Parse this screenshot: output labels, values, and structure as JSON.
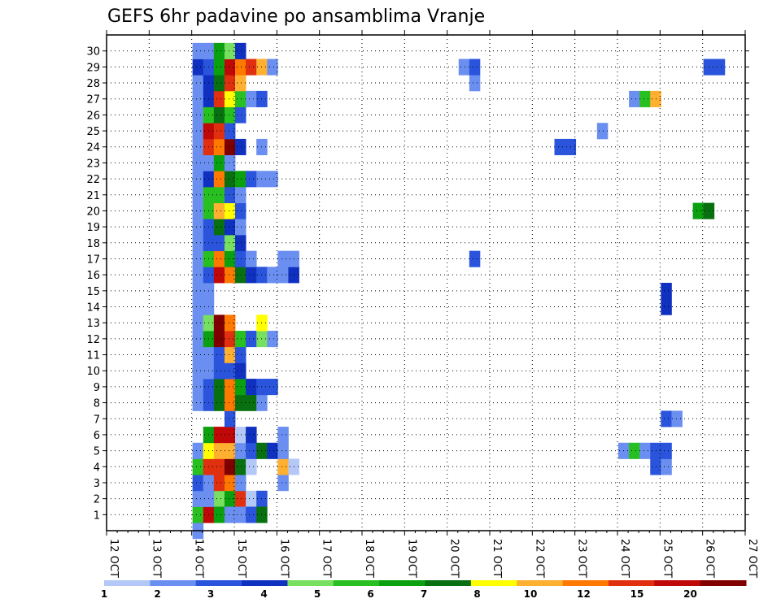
{
  "chart_data": {
    "type": "heatmap",
    "title": "GEFS 6hr padavine po ansamblima Vranje",
    "xlabel": "",
    "ylabel": "",
    "x_ticks": [
      "12 OCT",
      "13 OCT",
      "14 OCT",
      "15 OCT",
      "16 OCT",
      "17 OCT",
      "18 OCT",
      "19 OCT",
      "20 OCT",
      "21 OCT",
      "22 OCT",
      "23 OCT",
      "24 OCT",
      "25 OCT",
      "26 OCT",
      "27 OCT"
    ],
    "xlim": [
      0,
      60
    ],
    "y_ticks": [
      "1",
      "2",
      "3",
      "4",
      "5",
      "6",
      "7",
      "8",
      "9",
      "10",
      "11",
      "12",
      "13",
      "14",
      "15",
      "16",
      "17",
      "18",
      "19",
      "20",
      "21",
      "22",
      "23",
      "24",
      "25",
      "26",
      "27",
      "28",
      "29",
      "30"
    ],
    "ylim": [
      0,
      30
    ],
    "grid": true,
    "colorbar": {
      "levels": [
        "1",
        "2",
        "3",
        "4",
        "5",
        "6",
        "7",
        "8",
        "10",
        "12",
        "15",
        "20"
      ],
      "colors": [
        "#b4c8f8",
        "#6a8ff0",
        "#2a54dc",
        "#1030c0",
        "#78e060",
        "#28c020",
        "#0aa010",
        "#087010",
        "#ffff00",
        "#ffb030",
        "#ff7800",
        "#e03010",
        "#c00808",
        "#800000"
      ]
    },
    "cells": [
      [
        0,
        0,
        1
      ],
      [
        1,
        1,
        1
      ],
      [
        1,
        2,
        7
      ],
      [
        2,
        2,
        4
      ],
      [
        3,
        2,
        6
      ],
      [
        4,
        2,
        11
      ],
      [
        5,
        2,
        0
      ],
      [
        6,
        2,
        2
      ],
      [
        0,
        1,
        5
      ],
      [
        1,
        1,
        12
      ],
      [
        2,
        1,
        6
      ],
      [
        3,
        1,
        1
      ],
      [
        4,
        1,
        1
      ],
      [
        5,
        1,
        2
      ],
      [
        6,
        1,
        7
      ],
      [
        0,
        2,
        1
      ],
      [
        1,
        2,
        1
      ],
      [
        0,
        3,
        2
      ],
      [
        1,
        3,
        1
      ],
      [
        2,
        3,
        11
      ],
      [
        3,
        3,
        10
      ],
      [
        4,
        3,
        1
      ],
      [
        8,
        3,
        1
      ],
      [
        0,
        4,
        5
      ],
      [
        1,
        4,
        11
      ],
      [
        2,
        4,
        11
      ],
      [
        3,
        4,
        13
      ],
      [
        4,
        4,
        7
      ],
      [
        5,
        4,
        0
      ],
      [
        8,
        4,
        9
      ],
      [
        9,
        4,
        0
      ],
      [
        43,
        4,
        2
      ],
      [
        44,
        4,
        1
      ],
      [
        59,
        4,
        9
      ],
      [
        60,
        4,
        6
      ],
      [
        61,
        4,
        1
      ],
      [
        62,
        4,
        1
      ],
      [
        0,
        5,
        1
      ],
      [
        1,
        5,
        8
      ],
      [
        2,
        5,
        9
      ],
      [
        3,
        5,
        9
      ],
      [
        4,
        5,
        1
      ],
      [
        5,
        5,
        2
      ],
      [
        6,
        5,
        7
      ],
      [
        7,
        5,
        3
      ],
      [
        8,
        5,
        1
      ],
      [
        40,
        5,
        1
      ],
      [
        41,
        5,
        5
      ],
      [
        42,
        5,
        1
      ],
      [
        43,
        5,
        2
      ],
      [
        44,
        5,
        2
      ],
      [
        1,
        6,
        6
      ],
      [
        2,
        6,
        12
      ],
      [
        3,
        6,
        12
      ],
      [
        4,
        6,
        0
      ],
      [
        5,
        6,
        3
      ],
      [
        8,
        6,
        1
      ],
      [
        63,
        6,
        3
      ],
      [
        64,
        6,
        12
      ],
      [
        65,
        6,
        13
      ],
      [
        66,
        6,
        0
      ],
      [
        3,
        7,
        2
      ],
      [
        44,
        7,
        2
      ],
      [
        45,
        7,
        1
      ],
      [
        59,
        7,
        2
      ],
      [
        60,
        7,
        2
      ],
      [
        0,
        8,
        1
      ],
      [
        1,
        8,
        2
      ],
      [
        2,
        8,
        7
      ],
      [
        3,
        8,
        10
      ],
      [
        4,
        8,
        7
      ],
      [
        5,
        8,
        7
      ],
      [
        6,
        8,
        1
      ],
      [
        67,
        8,
        2
      ],
      [
        0,
        9,
        1
      ],
      [
        1,
        9,
        2
      ],
      [
        2,
        9,
        7
      ],
      [
        3,
        9,
        10
      ],
      [
        4,
        9,
        6
      ],
      [
        5,
        9,
        3
      ],
      [
        6,
        9,
        2
      ],
      [
        7,
        9,
        2
      ],
      [
        0,
        10,
        1
      ],
      [
        1,
        10,
        1
      ],
      [
        2,
        10,
        2
      ],
      [
        3,
        10,
        2
      ],
      [
        4,
        10,
        3
      ],
      [
        0,
        11,
        1
      ],
      [
        1,
        11,
        1
      ],
      [
        2,
        11,
        2
      ],
      [
        3,
        11,
        9
      ],
      [
        4,
        11,
        2
      ],
      [
        0,
        12,
        1
      ],
      [
        1,
        12,
        6
      ],
      [
        2,
        12,
        13
      ],
      [
        3,
        12,
        11
      ],
      [
        4,
        12,
        5
      ],
      [
        5,
        12,
        2
      ],
      [
        6,
        12,
        4
      ],
      [
        7,
        12,
        1
      ],
      [
        0,
        13,
        1
      ],
      [
        1,
        13,
        4
      ],
      [
        2,
        13,
        13
      ],
      [
        3,
        13,
        10
      ],
      [
        6,
        13,
        8
      ],
      [
        0,
        14,
        1
      ],
      [
        1,
        14,
        1
      ],
      [
        44,
        14,
        3
      ],
      [
        0,
        15,
        1
      ],
      [
        1,
        15,
        1
      ],
      [
        44,
        15,
        3
      ],
      [
        0,
        16,
        1
      ],
      [
        1,
        16,
        2
      ],
      [
        2,
        16,
        12
      ],
      [
        3,
        16,
        10
      ],
      [
        4,
        16,
        7
      ],
      [
        5,
        16,
        3
      ],
      [
        6,
        16,
        2
      ],
      [
        7,
        16,
        1
      ],
      [
        8,
        16,
        1
      ],
      [
        9,
        16,
        3
      ],
      [
        0,
        17,
        1
      ],
      [
        1,
        17,
        5
      ],
      [
        2,
        17,
        10
      ],
      [
        3,
        17,
        6
      ],
      [
        4,
        17,
        2
      ],
      [
        5,
        17,
        1
      ],
      [
        8,
        17,
        1
      ],
      [
        9,
        17,
        1
      ],
      [
        26,
        17,
        2
      ],
      [
        56,
        17,
        10
      ],
      [
        57,
        17,
        1
      ],
      [
        0,
        18,
        1
      ],
      [
        1,
        18,
        2
      ],
      [
        2,
        18,
        2
      ],
      [
        3,
        18,
        4
      ],
      [
        4,
        18,
        3
      ],
      [
        65,
        18,
        9
      ],
      [
        66,
        18,
        5
      ],
      [
        0,
        19,
        1
      ],
      [
        1,
        19,
        2
      ],
      [
        2,
        19,
        7
      ],
      [
        3,
        19,
        3
      ],
      [
        4,
        19,
        1
      ],
      [
        59,
        19,
        9
      ],
      [
        0,
        20,
        1
      ],
      [
        1,
        20,
        5
      ],
      [
        2,
        20,
        9
      ],
      [
        3,
        20,
        8
      ],
      [
        4,
        20,
        2
      ],
      [
        47,
        20,
        6
      ],
      [
        48,
        20,
        7
      ],
      [
        0,
        21,
        1
      ],
      [
        1,
        21,
        5
      ],
      [
        2,
        21,
        5
      ],
      [
        3,
        21,
        2
      ],
      [
        4,
        21,
        1
      ],
      [
        0,
        22,
        1
      ],
      [
        1,
        22,
        3
      ],
      [
        2,
        22,
        10
      ],
      [
        3,
        22,
        7
      ],
      [
        4,
        22,
        6
      ],
      [
        5,
        22,
        2
      ],
      [
        6,
        22,
        1
      ],
      [
        7,
        22,
        1
      ],
      [
        59,
        22,
        3
      ],
      [
        0,
        23,
        1
      ],
      [
        1,
        23,
        1
      ],
      [
        2,
        23,
        6
      ],
      [
        3,
        23,
        1
      ],
      [
        0,
        24,
        1
      ],
      [
        1,
        24,
        11
      ],
      [
        2,
        24,
        10
      ],
      [
        3,
        24,
        13
      ],
      [
        4,
        24,
        3
      ],
      [
        6,
        24,
        1
      ],
      [
        34,
        24,
        2
      ],
      [
        35,
        24,
        2
      ],
      [
        0,
        25,
        1
      ],
      [
        1,
        25,
        12
      ],
      [
        2,
        25,
        11
      ],
      [
        3,
        25,
        2
      ],
      [
        38,
        25,
        1
      ],
      [
        0,
        26,
        1
      ],
      [
        1,
        26,
        5
      ],
      [
        2,
        26,
        7
      ],
      [
        3,
        26,
        5
      ],
      [
        4,
        26,
        2
      ],
      [
        59,
        26,
        1
      ],
      [
        60,
        26,
        1
      ],
      [
        61,
        26,
        2
      ],
      [
        62,
        26,
        5
      ],
      [
        0,
        27,
        1
      ],
      [
        1,
        27,
        3
      ],
      [
        2,
        27,
        11
      ],
      [
        3,
        27,
        8
      ],
      [
        4,
        27,
        5
      ],
      [
        5,
        27,
        1
      ],
      [
        6,
        27,
        2
      ],
      [
        41,
        27,
        1
      ],
      [
        42,
        27,
        5
      ],
      [
        43,
        27,
        9
      ],
      [
        0,
        28,
        1
      ],
      [
        1,
        28,
        3
      ],
      [
        2,
        28,
        7
      ],
      [
        3,
        28,
        11
      ],
      [
        4,
        28,
        9
      ],
      [
        26,
        28,
        1
      ],
      [
        66,
        28,
        1
      ],
      [
        67,
        28,
        3
      ],
      [
        0,
        29,
        3
      ],
      [
        1,
        29,
        2
      ],
      [
        2,
        29,
        6
      ],
      [
        3,
        29,
        12
      ],
      [
        4,
        29,
        10
      ],
      [
        5,
        29,
        11
      ],
      [
        6,
        29,
        9
      ],
      [
        7,
        29,
        1
      ],
      [
        25,
        29,
        1
      ],
      [
        26,
        29,
        2
      ],
      [
        48,
        29,
        2
      ],
      [
        49,
        29,
        2
      ],
      [
        0,
        30,
        1
      ],
      [
        1,
        30,
        1
      ],
      [
        2,
        30,
        6
      ],
      [
        3,
        30,
        4
      ],
      [
        4,
        30,
        3
      ]
    ]
  }
}
